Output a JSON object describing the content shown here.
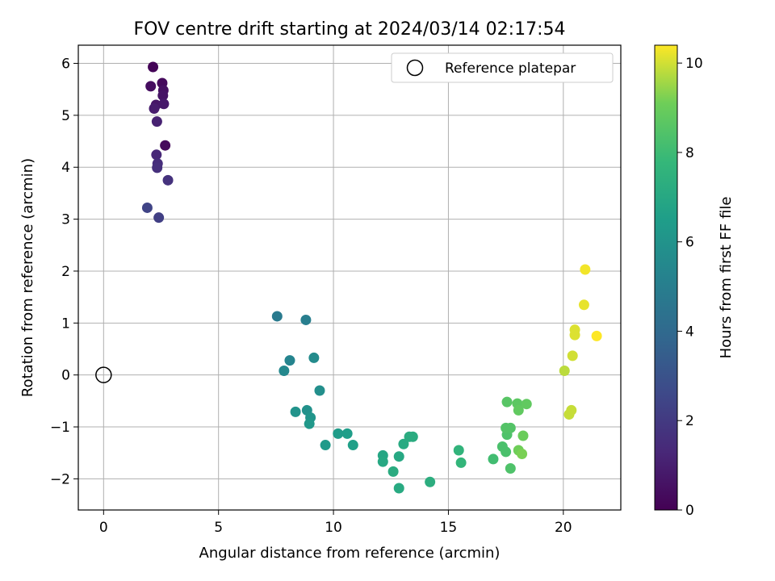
{
  "chart_data": {
    "type": "scatter",
    "title": "FOV centre drift starting at 2024/03/14 02:17:54",
    "xlabel": "Angular distance from reference (arcmin)",
    "ylabel": "Rotation from reference (arcmin)",
    "xlim": [
      -1.1,
      22.5
    ],
    "ylim": [
      -2.6,
      6.35
    ],
    "xticks": [
      0,
      5,
      10,
      15,
      20
    ],
    "yticks": [
      -2,
      -1,
      0,
      1,
      2,
      3,
      4,
      5,
      6
    ],
    "grid": true,
    "legend": {
      "position": "top-right",
      "entries": [
        "Reference platepar"
      ]
    },
    "reference_point": {
      "x": 0,
      "y": 0
    },
    "colorbar": {
      "label": "Hours from first FF file",
      "range": [
        0,
        10.4
      ],
      "ticks": [
        0,
        2,
        4,
        6,
        8,
        10
      ],
      "colormap": "viridis"
    },
    "points": [
      {
        "x": 2.15,
        "y": 5.93,
        "c": 0.1
      },
      {
        "x": 2.55,
        "y": 5.62,
        "c": 0.3
      },
      {
        "x": 2.05,
        "y": 5.56,
        "c": 0.4
      },
      {
        "x": 2.6,
        "y": 5.48,
        "c": 0.5
      },
      {
        "x": 2.58,
        "y": 5.38,
        "c": 0.6
      },
      {
        "x": 2.28,
        "y": 5.2,
        "c": 0.7
      },
      {
        "x": 2.62,
        "y": 5.22,
        "c": 0.8
      },
      {
        "x": 2.2,
        "y": 5.13,
        "c": 0.9
      },
      {
        "x": 2.32,
        "y": 4.88,
        "c": 1.1
      },
      {
        "x": 2.68,
        "y": 4.42,
        "c": 0.3
      },
      {
        "x": 2.3,
        "y": 4.24,
        "c": 1.3
      },
      {
        "x": 2.35,
        "y": 4.07,
        "c": 1.5
      },
      {
        "x": 2.33,
        "y": 3.99,
        "c": 1.6
      },
      {
        "x": 2.8,
        "y": 3.75,
        "c": 1.7
      },
      {
        "x": 1.9,
        "y": 3.22,
        "c": 2.4
      },
      {
        "x": 2.4,
        "y": 3.03,
        "c": 2.2
      },
      {
        "x": 7.55,
        "y": 1.13,
        "c": 4.8
      },
      {
        "x": 8.8,
        "y": 1.06,
        "c": 5.0
      },
      {
        "x": 8.1,
        "y": 0.28,
        "c": 5.3
      },
      {
        "x": 9.15,
        "y": 0.33,
        "c": 5.6
      },
      {
        "x": 7.85,
        "y": 0.08,
        "c": 5.5
      },
      {
        "x": 9.4,
        "y": -0.3,
        "c": 5.8
      },
      {
        "x": 8.35,
        "y": -0.71,
        "c": 6.0
      },
      {
        "x": 8.85,
        "y": -0.68,
        "c": 5.9
      },
      {
        "x": 9.0,
        "y": -0.82,
        "c": 6.1
      },
      {
        "x": 8.95,
        "y": -0.94,
        "c": 6.2
      },
      {
        "x": 9.65,
        "y": -1.35,
        "c": 6.3
      },
      {
        "x": 10.2,
        "y": -1.13,
        "c": 6.4
      },
      {
        "x": 10.6,
        "y": -1.13,
        "c": 6.5
      },
      {
        "x": 10.85,
        "y": -1.35,
        "c": 6.6
      },
      {
        "x": 12.15,
        "y": -1.55,
        "c": 6.9
      },
      {
        "x": 12.15,
        "y": -1.67,
        "c": 7.0
      },
      {
        "x": 12.85,
        "y": -1.57,
        "c": 7.0
      },
      {
        "x": 13.05,
        "y": -1.33,
        "c": 7.1
      },
      {
        "x": 13.3,
        "y": -1.19,
        "c": 7.2
      },
      {
        "x": 13.45,
        "y": -1.19,
        "c": 7.2
      },
      {
        "x": 12.6,
        "y": -1.86,
        "c": 7.2
      },
      {
        "x": 12.85,
        "y": -2.18,
        "c": 7.1
      },
      {
        "x": 14.2,
        "y": -2.06,
        "c": 7.3
      },
      {
        "x": 15.45,
        "y": -1.45,
        "c": 7.6
      },
      {
        "x": 15.55,
        "y": -1.69,
        "c": 7.7
      },
      {
        "x": 16.95,
        "y": -1.62,
        "c": 8.1
      },
      {
        "x": 17.35,
        "y": -1.38,
        "c": 8.3
      },
      {
        "x": 17.5,
        "y": -1.48,
        "c": 8.3
      },
      {
        "x": 17.7,
        "y": -1.8,
        "c": 8.4
      },
      {
        "x": 17.55,
        "y": -1.15,
        "c": 8.4
      },
      {
        "x": 17.5,
        "y": -1.02,
        "c": 8.5
      },
      {
        "x": 17.7,
        "y": -1.02,
        "c": 8.5
      },
      {
        "x": 17.55,
        "y": -0.52,
        "c": 8.6
      },
      {
        "x": 18.0,
        "y": -0.55,
        "c": 8.7
      },
      {
        "x": 18.05,
        "y": -0.68,
        "c": 8.8
      },
      {
        "x": 18.4,
        "y": -0.56,
        "c": 8.8
      },
      {
        "x": 18.25,
        "y": -1.17,
        "c": 9.0
      },
      {
        "x": 18.05,
        "y": -1.45,
        "c": 9.1
      },
      {
        "x": 18.2,
        "y": -1.52,
        "c": 9.2
      },
      {
        "x": 20.05,
        "y": 0.08,
        "c": 9.8
      },
      {
        "x": 20.25,
        "y": -0.76,
        "c": 9.9
      },
      {
        "x": 20.35,
        "y": -0.68,
        "c": 9.9
      },
      {
        "x": 20.4,
        "y": 0.37,
        "c": 10.0
      },
      {
        "x": 20.5,
        "y": 0.77,
        "c": 10.1
      },
      {
        "x": 20.5,
        "y": 0.87,
        "c": 10.1
      },
      {
        "x": 20.9,
        "y": 1.35,
        "c": 10.2
      },
      {
        "x": 20.95,
        "y": 2.03,
        "c": 10.3
      },
      {
        "x": 21.45,
        "y": 0.75,
        "c": 10.4
      }
    ]
  }
}
